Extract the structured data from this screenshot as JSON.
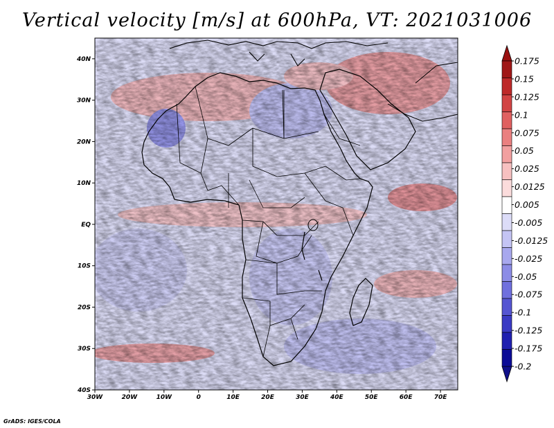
{
  "title": "Vertical velocity [m/s] at 600hPa, VT: 2021031006",
  "credit": "GrADS: IGES/COLA",
  "map": {
    "variable": "Vertical velocity",
    "units": "m/s",
    "level": "600hPa",
    "valid_time": "2021031006",
    "lon_range": [
      -30,
      75
    ],
    "lat_range": [
      -40,
      45
    ],
    "x_ticks": [
      "30W",
      "20W",
      "10W",
      "0",
      "10E",
      "20E",
      "30E",
      "40E",
      "50E",
      "60E",
      "70E"
    ],
    "x_tick_values": [
      -30,
      -20,
      -10,
      0,
      10,
      20,
      30,
      40,
      50,
      60,
      70
    ],
    "y_ticks": [
      "40N",
      "30N",
      "20N",
      "10N",
      "EQ",
      "10S",
      "20S",
      "30S",
      "40S"
    ],
    "y_tick_values": [
      40,
      30,
      20,
      10,
      0,
      -10,
      -20,
      -30,
      -40
    ]
  },
  "colorbar": {
    "labels": [
      "0.175",
      "0.15",
      "0.125",
      "0.1",
      "0.075",
      "0.05",
      "0.025",
      "0.0125",
      "0.005",
      "-0.005",
      "-0.0125",
      "-0.025",
      "-0.05",
      "-0.075",
      "-0.1",
      "-0.125",
      "-0.175",
      "-0.2"
    ],
    "colors": [
      "#a01818",
      "#be2a2a",
      "#d24444",
      "#e06060",
      "#ea8080",
      "#f2a0a0",
      "#f7c0c0",
      "#fbdcdc",
      "#ffffff",
      "#dcdcf8",
      "#c4c4f4",
      "#a8a8ee",
      "#8c8ce6",
      "#7070de",
      "#5555d2",
      "#3a3ac4",
      "#2020b0",
      "#0c0c96"
    ],
    "top_arrow_color": "#9a1010",
    "bottom_arrow_color": "#10108a"
  }
}
